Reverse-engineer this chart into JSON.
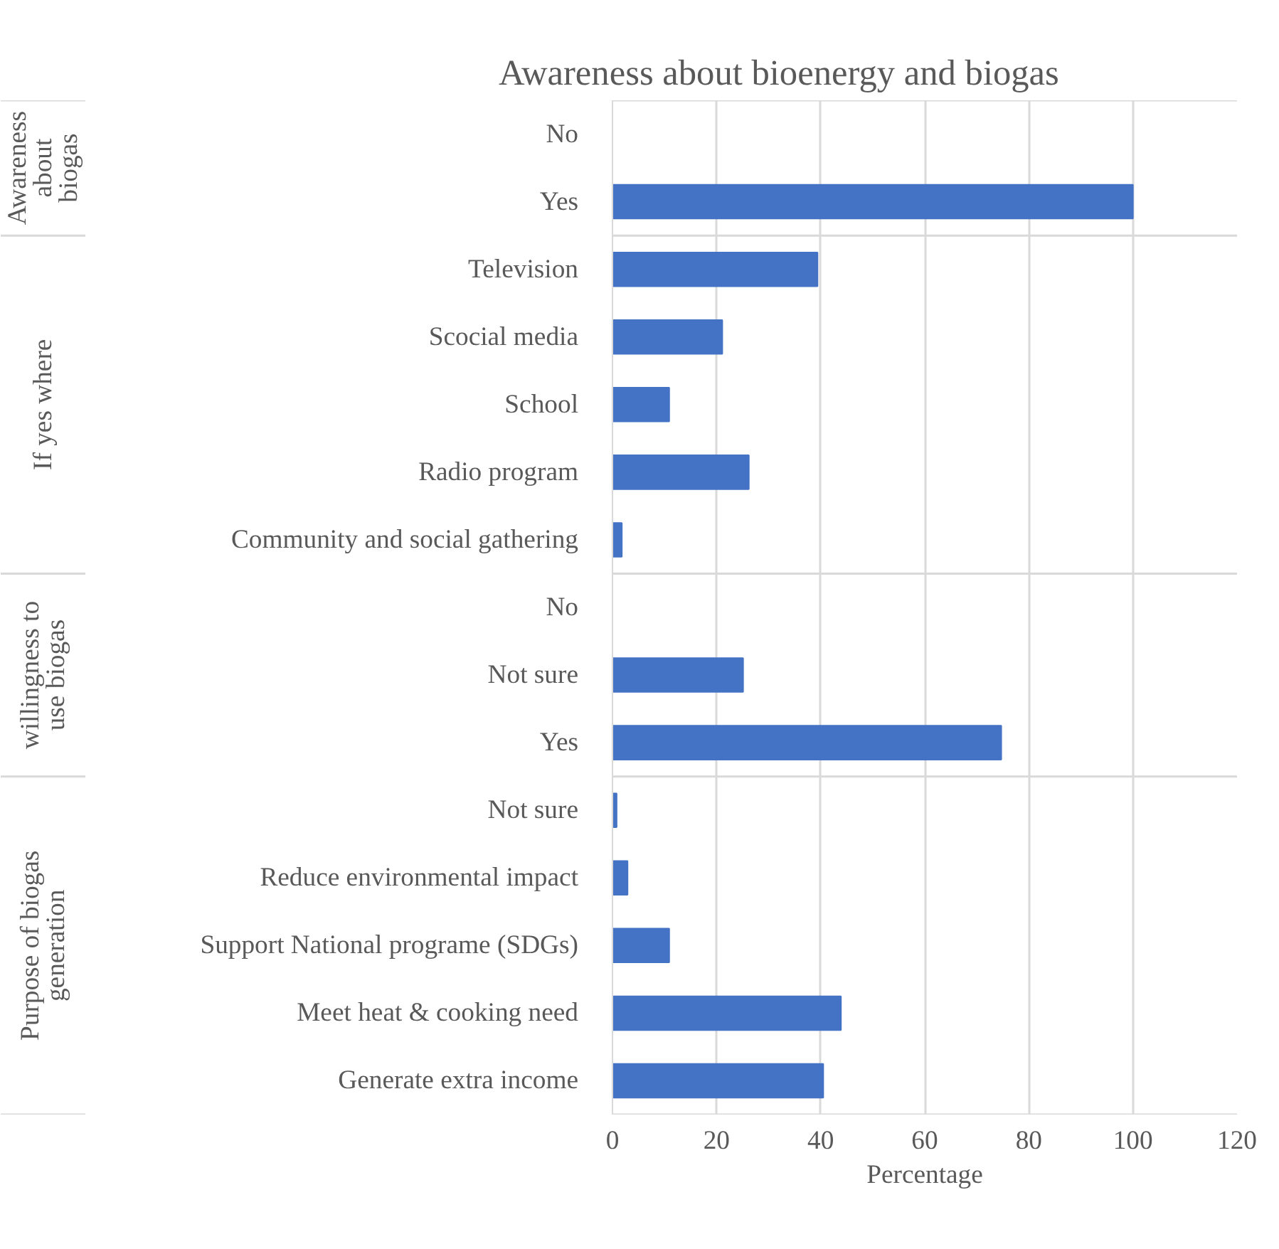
{
  "chart_data": {
    "type": "bar",
    "orientation": "horizontal",
    "title": "Awareness about bioenergy and biogas",
    "xlabel": "Percentage",
    "categories": [
      "No",
      "Yes",
      "Television",
      "Scocial media",
      "School",
      "Radio program",
      "Community and social gathering",
      "No",
      "Not sure",
      "Yes",
      "Not sure",
      "Reduce environmental impact",
      "Support National programe (SDGs)",
      "Meet heat & cooking need",
      "Generate extra income"
    ],
    "values": [
      0,
      100,
      39.4,
      21.1,
      10.9,
      26.2,
      1.8,
      0,
      25.1,
      74.7,
      0.8,
      2.9,
      10.9,
      43.9,
      40.5
    ],
    "color": "#4472c4",
    "xlim": [
      0,
      120
    ],
    "xticks": [
      0,
      20,
      40,
      60,
      80,
      100,
      120
    ],
    "grid": "x",
    "annotations": [
      "Awareness about biogas",
      "If yes where",
      "willingness to use biogas",
      "Purpose of biogas generation"
    ]
  }
}
